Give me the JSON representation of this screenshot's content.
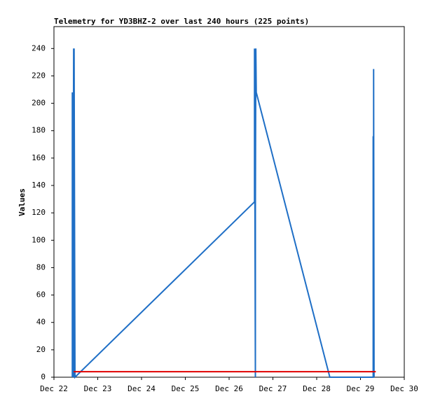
{
  "chart_data": {
    "type": "line",
    "title": "Telemetry for YD3BHZ-2 over last 240 hours (225 points)",
    "y_label": "Values",
    "xlim": [
      22,
      30
    ],
    "xticks": [
      {
        "value": 22,
        "label": "Dec 22"
      },
      {
        "value": 23,
        "label": "Dec 23"
      },
      {
        "value": 24,
        "label": "Dec 24"
      },
      {
        "value": 25,
        "label": "Dec 25"
      },
      {
        "value": 26,
        "label": "Dec 26"
      },
      {
        "value": 27,
        "label": "Dec 27"
      },
      {
        "value": 28,
        "label": "Dec 28"
      },
      {
        "value": 29,
        "label": "Dec 29"
      },
      {
        "value": 30,
        "label": "Dec 30"
      }
    ],
    "ylim": [
      0,
      256
    ],
    "yticks": [
      0,
      20,
      40,
      60,
      80,
      100,
      120,
      140,
      160,
      180,
      200,
      220,
      240
    ],
    "series": [
      {
        "color": "#1f6fc6",
        "x": [
          22.42,
          22.42,
          22.43,
          22.45,
          22.45,
          22.46,
          22.48,
          26.58,
          26.58,
          26.6,
          26.6,
          26.61,
          26.62,
          28.3,
          29.29,
          29.29,
          29.3,
          29.3,
          29.31
        ],
        "values": [
          0,
          208,
          0,
          240,
          0,
          240,
          0,
          128,
          240,
          0,
          121,
          240,
          208,
          0,
          0,
          176,
          0,
          225,
          0
        ]
      },
      {
        "color": "#e00000",
        "x": [
          22.45,
          29.35
        ],
        "values": [
          4,
          4
        ]
      }
    ]
  }
}
